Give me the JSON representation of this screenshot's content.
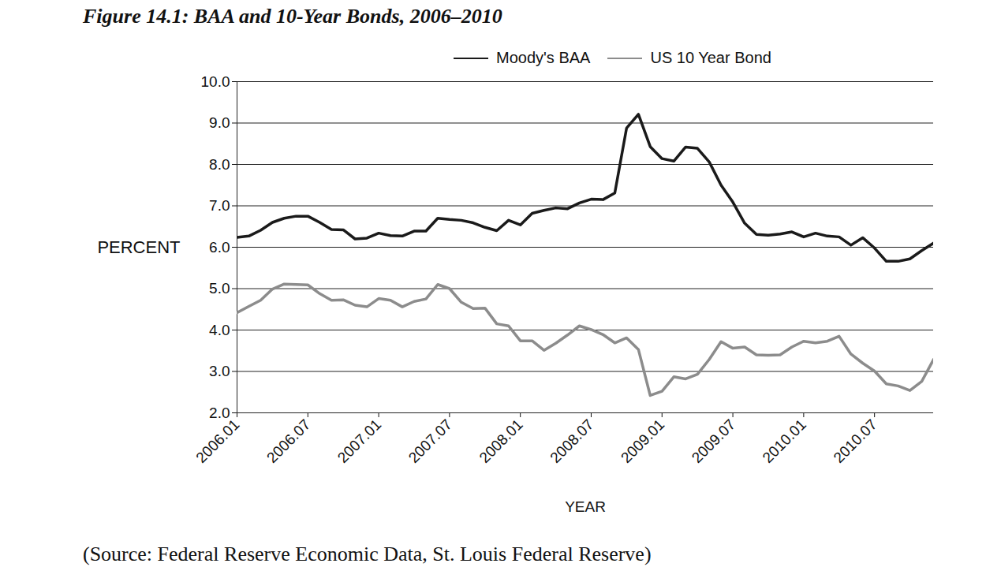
{
  "chart_data": {
    "type": "line",
    "title": "Figure 14.1: BAA and 10-Year Bonds, 2006–2010",
    "x_label": "YEAR",
    "y_label": "PERCENT",
    "caption": "(Source: Federal Reserve Economic Data, St. Louis Federal Reserve)",
    "categories": [
      "2006.01",
      null,
      null,
      null,
      null,
      null,
      "2006.07",
      null,
      null,
      null,
      null,
      null,
      "2007.01",
      null,
      null,
      null,
      null,
      null,
      "2007.07",
      null,
      null,
      null,
      null,
      null,
      "2008.01",
      null,
      null,
      null,
      null,
      null,
      "2008.07",
      null,
      null,
      null,
      null,
      null,
      "2009.01",
      null,
      null,
      null,
      null,
      null,
      "2009.07",
      null,
      null,
      null,
      null,
      null,
      "2010.01",
      null,
      null,
      null,
      null,
      null,
      "2010.07",
      null,
      null,
      null,
      null,
      null
    ],
    "series": [
      {
        "name": "Moody's BAA",
        "color": "#1a1a1a",
        "values": [
          6.24,
          6.27,
          6.41,
          6.6,
          6.7,
          6.75,
          6.75,
          6.6,
          6.43,
          6.42,
          6.2,
          6.22,
          6.34,
          6.28,
          6.27,
          6.39,
          6.39,
          6.7,
          6.67,
          6.65,
          6.59,
          6.48,
          6.4,
          6.65,
          6.54,
          6.82,
          6.89,
          6.95,
          6.93,
          7.07,
          7.16,
          7.15,
          7.31,
          8.88,
          9.21,
          8.43,
          8.14,
          8.08,
          8.42,
          8.39,
          8.06,
          7.5,
          7.09,
          6.58,
          6.31,
          6.29,
          6.32,
          6.37,
          6.25,
          6.34,
          6.27,
          6.25,
          6.05,
          6.23,
          5.98,
          5.66,
          5.66,
          5.72,
          5.92,
          6.1
        ]
      },
      {
        "name": "US 10 Year Bond",
        "color": "#8c8c8c",
        "values": [
          4.42,
          4.57,
          4.72,
          4.99,
          5.11,
          5.1,
          5.09,
          4.88,
          4.72,
          4.73,
          4.6,
          4.56,
          4.76,
          4.72,
          4.56,
          4.69,
          4.75,
          5.1,
          5.0,
          4.67,
          4.52,
          4.53,
          4.15,
          4.1,
          3.74,
          3.74,
          3.51,
          3.68,
          3.88,
          4.1,
          4.01,
          3.89,
          3.69,
          3.81,
          3.53,
          2.42,
          2.52,
          2.87,
          2.82,
          2.93,
          3.29,
          3.72,
          3.56,
          3.59,
          3.4,
          3.39,
          3.4,
          3.59,
          3.73,
          3.69,
          3.73,
          3.85,
          3.42,
          3.2,
          3.01,
          2.7,
          2.65,
          2.54,
          2.76,
          3.29
        ]
      }
    ],
    "ylim": [
      2,
      10
    ],
    "yticks": [
      {
        "value": 2,
        "label": "2.0"
      },
      {
        "value": 3,
        "label": "3.0"
      },
      {
        "value": 4,
        "label": "4.0"
      },
      {
        "value": 5,
        "label": "5.0"
      },
      {
        "value": 6,
        "label": "6.0"
      },
      {
        "value": 7,
        "label": "7.0"
      },
      {
        "value": 8,
        "label": "8.0"
      },
      {
        "value": 9,
        "label": "9.0"
      },
      {
        "value": 10,
        "label": "10.0"
      }
    ],
    "grid": true,
    "legend": "top"
  }
}
